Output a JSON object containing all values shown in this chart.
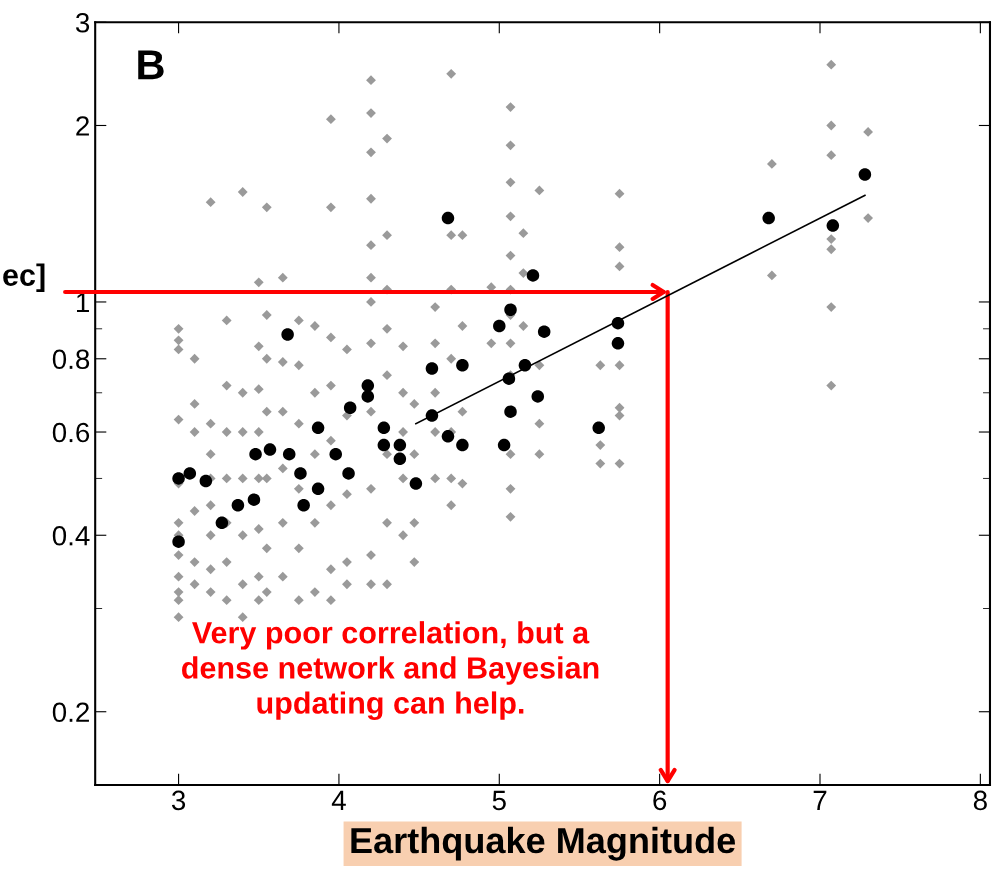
{
  "chart_data": {
    "type": "scatter",
    "xlabel": "Earthquake Magnitude",
    "annotations": [
      "B",
      {
        "text": "ec]",
        "x": 6.05,
        "y": 1.04
      },
      "Very poor correlation, but a\ndense network and Bayesian\nupdating can help."
    ],
    "log": "y",
    "xlim": [
      2.48,
      8.06
    ],
    "ylim": [
      0.15,
      3
    ],
    "xticks": [
      3,
      4,
      5,
      6,
      7,
      8
    ],
    "yticks": [
      0.2,
      0.4,
      0.6,
      0.8,
      1,
      2,
      3
    ],
    "grid": false,
    "legend": false,
    "series": [
      {
        "color": "#9a9a9a",
        "marker": "diamond",
        "x": [
          3.0,
          3.0,
          3.0,
          3.0,
          3.0,
          3.0,
          3.0,
          3.0,
          3.0,
          3.0,
          3.0,
          3.0,
          3.1,
          3.1,
          3.1,
          3.1,
          3.1,
          3.1,
          3.2,
          3.2,
          3.2,
          3.2,
          3.2,
          3.2,
          3.2,
          3.2,
          3.3,
          3.3,
          3.3,
          3.3,
          3.3,
          3.3,
          3.3,
          3.4,
          3.4,
          3.4,
          3.4,
          3.4,
          3.4,
          3.4,
          3.5,
          3.5,
          3.5,
          3.5,
          3.5,
          3.5,
          3.5,
          3.5,
          3.55,
          3.55,
          3.55,
          3.55,
          3.55,
          3.55,
          3.55,
          3.65,
          3.65,
          3.65,
          3.65,
          3.65,
          3.65,
          3.75,
          3.75,
          3.75,
          3.75,
          3.75,
          3.75,
          3.85,
          3.85,
          3.85,
          3.85,
          3.85,
          3.95,
          3.95,
          3.95,
          3.95,
          3.95,
          3.95,
          3.95,
          3.95,
          4.05,
          4.05,
          4.05,
          4.05,
          4.05,
          4.2,
          4.2,
          4.2,
          4.2,
          4.2,
          4.2,
          4.2,
          4.2,
          4.2,
          4.2,
          4.2,
          4.2,
          4.3,
          4.3,
          4.3,
          4.3,
          4.3,
          4.3,
          4.3,
          4.3,
          4.4,
          4.4,
          4.4,
          4.4,
          4.4,
          4.47,
          4.47,
          4.47,
          4.47,
          4.6,
          4.6,
          4.6,
          4.6,
          4.6,
          4.7,
          4.7,
          4.7,
          4.7,
          4.7,
          4.7,
          4.7,
          4.77,
          4.77,
          4.77,
          4.77,
          4.95,
          4.95,
          5.07,
          5.07,
          5.07,
          5.07,
          5.07,
          5.07,
          5.07,
          5.07,
          5.07,
          5.07,
          5.07,
          5.07,
          5.15,
          5.15,
          5.15,
          5.25,
          5.25,
          5.25,
          5.25,
          5.63,
          5.63,
          5.63,
          5.75,
          5.75,
          5.75,
          5.75,
          5.75,
          5.75,
          5.75,
          6.7,
          6.7,
          7.07,
          7.07,
          7.07,
          7.07,
          7.07,
          7.07,
          7.07,
          7.3,
          7.3
        ],
        "values": [
          0.9,
          0.86,
          0.83,
          0.63,
          0.49,
          0.42,
          0.4,
          0.37,
          0.34,
          0.32,
          0.31,
          0.29,
          0.8,
          0.67,
          0.6,
          0.44,
          0.36,
          0.33,
          1.48,
          0.62,
          0.55,
          0.5,
          0.45,
          0.4,
          0.35,
          0.32,
          0.93,
          0.72,
          0.6,
          0.5,
          0.42,
          0.36,
          0.31,
          1.54,
          0.7,
          0.6,
          0.5,
          0.4,
          0.33,
          0.29,
          1.08,
          0.84,
          0.71,
          0.6,
          0.5,
          0.41,
          0.34,
          0.31,
          1.45,
          0.95,
          0.8,
          0.65,
          0.5,
          0.38,
          0.32,
          1.1,
          0.79,
          0.65,
          0.52,
          0.42,
          0.34,
          0.93,
          0.78,
          0.62,
          0.48,
          0.38,
          0.31,
          0.91,
          0.7,
          0.55,
          0.42,
          0.32,
          2.05,
          1.45,
          0.87,
          0.72,
          0.58,
          0.45,
          0.35,
          0.31,
          0.83,
          0.64,
          0.47,
          0.36,
          0.33,
          2.39,
          2.1,
          1.8,
          1.5,
          1.25,
          1.1,
          1.0,
          0.85,
          0.65,
          0.48,
          0.37,
          0.33,
          1.9,
          1.3,
          1.05,
          0.9,
          0.75,
          0.55,
          0.42,
          0.33,
          0.84,
          0.7,
          0.6,
          0.5,
          0.4,
          0.67,
          0.55,
          0.42,
          0.36,
          0.98,
          0.85,
          0.7,
          0.6,
          0.5,
          2.45,
          1.3,
          1.05,
          0.8,
          0.6,
          0.5,
          0.45,
          1.3,
          0.91,
          0.65,
          0.49,
          1.06,
          0.85,
          2.15,
          1.85,
          1.6,
          1.4,
          1.2,
          1.05,
          0.95,
          0.85,
          0.75,
          0.55,
          0.48,
          0.43,
          1.31,
          1.12,
          0.91,
          1.55,
          0.78,
          0.62,
          0.55,
          0.78,
          0.57,
          0.53,
          1.53,
          1.24,
          1.15,
          0.78,
          0.66,
          0.64,
          0.53,
          1.72,
          1.11,
          2.54,
          2.0,
          1.78,
          1.28,
          1.23,
          0.98,
          0.72,
          1.95,
          1.39
        ]
      },
      {
        "color": "#000000",
        "marker": "circle",
        "x": [
          3.0,
          3.0,
          3.07,
          3.17,
          3.27,
          3.37,
          3.47,
          3.48,
          3.57,
          3.69,
          3.68,
          3.76,
          3.78,
          3.87,
          3.87,
          3.98,
          4.06,
          4.07,
          4.18,
          4.18,
          4.28,
          4.28,
          4.38,
          4.38,
          4.48,
          4.58,
          4.58,
          4.68,
          4.68,
          4.77,
          4.77,
          5.0,
          5.03,
          5.06,
          5.07,
          5.07,
          5.16,
          5.21,
          5.24,
          5.28,
          5.62,
          5.74,
          5.74,
          6.68,
          7.08,
          7.28
        ],
        "values": [
          0.5,
          0.39,
          0.51,
          0.495,
          0.42,
          0.45,
          0.46,
          0.55,
          0.56,
          0.55,
          0.88,
          0.51,
          0.45,
          0.48,
          0.61,
          0.55,
          0.51,
          0.66,
          0.72,
          0.69,
          0.61,
          0.57,
          0.57,
          0.54,
          0.49,
          0.64,
          0.77,
          0.59,
          1.39,
          0.78,
          0.57,
          0.91,
          0.57,
          0.74,
          0.97,
          0.65,
          0.78,
          1.11,
          0.69,
          0.89,
          0.61,
          0.92,
          0.85,
          1.39,
          1.35,
          1.65
        ]
      },
      {
        "type": "line",
        "color": "#000000",
        "marker": "none",
        "x": [
          4.48,
          7.28
        ],
        "values": [
          0.62,
          1.52
        ]
      }
    ]
  }
}
